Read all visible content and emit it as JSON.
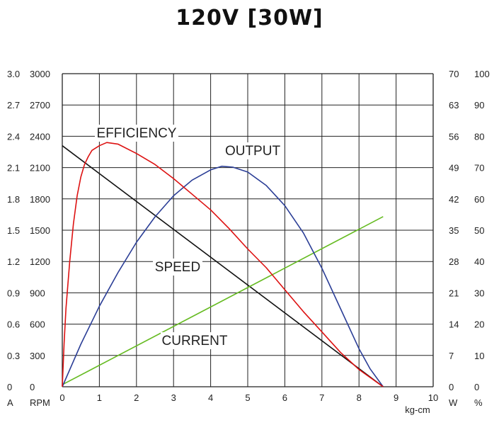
{
  "title": "120V [30W]",
  "chart_data": {
    "type": "line",
    "title": "120V [30W]",
    "x": {
      "unit": "kg-cm",
      "range": [
        0,
        10
      ],
      "ticks": [
        "0",
        "1",
        "2",
        "3",
        "4",
        "5",
        "6",
        "7",
        "8",
        "9",
        "10"
      ]
    },
    "axes": {
      "current": {
        "unit": "A",
        "range": [
          0,
          3.0
        ],
        "ticks": [
          "0",
          "0.3",
          "0.6",
          "0.9",
          "1.2",
          "1.5",
          "1.8",
          "2.1",
          "2.4",
          "2.7",
          "3.0"
        ]
      },
      "speed": {
        "unit": "RPM",
        "range": [
          0,
          3000
        ],
        "ticks": [
          "0",
          "300",
          "600",
          "900",
          "1200",
          "1500",
          "1800",
          "2100",
          "2400",
          "2700",
          "3000"
        ]
      },
      "output": {
        "unit": "W",
        "range": [
          0,
          70
        ],
        "ticks": [
          "0",
          "7",
          "14",
          "21",
          "28",
          "35",
          "42",
          "49",
          "56",
          "63",
          "70"
        ]
      },
      "efficiency": {
        "unit": "%",
        "range": [
          0,
          100
        ],
        "ticks": [
          "0",
          "10",
          "20",
          "30",
          "40",
          "50",
          "60",
          "70",
          "80",
          "90",
          "100"
        ]
      }
    },
    "series": [
      {
        "name": "SPEED",
        "axis": "speed",
        "color": "#111111",
        "points": [
          [
            0,
            2310
          ],
          [
            8.65,
            0
          ]
        ]
      },
      {
        "name": "CURRENT",
        "axis": "current",
        "color": "#66bb22",
        "points": [
          [
            0,
            0.02
          ],
          [
            8.65,
            1.63
          ]
        ]
      },
      {
        "name": "OUTPUT",
        "axis": "output",
        "color": "#2b3e96",
        "points": [
          [
            0,
            0
          ],
          [
            0.5,
            9.5
          ],
          [
            1,
            18
          ],
          [
            1.5,
            25.5
          ],
          [
            2,
            32.3
          ],
          [
            2.5,
            38
          ],
          [
            3,
            42.7
          ],
          [
            3.5,
            46.2
          ],
          [
            4,
            48.5
          ],
          [
            4.3,
            49.3
          ],
          [
            4.6,
            49.1
          ],
          [
            5,
            48
          ],
          [
            5.5,
            45
          ],
          [
            6,
            40.5
          ],
          [
            6.5,
            34.4
          ],
          [
            7,
            26.5
          ],
          [
            7.5,
            17.5
          ],
          [
            8,
            8.5
          ],
          [
            8.3,
            4
          ],
          [
            8.65,
            0
          ]
        ]
      },
      {
        "name": "EFFICIENCY",
        "axis": "efficiency",
        "color": "#dd1111",
        "points": [
          [
            0,
            0
          ],
          [
            0.05,
            14
          ],
          [
            0.1,
            25
          ],
          [
            0.2,
            40
          ],
          [
            0.3,
            52
          ],
          [
            0.4,
            61
          ],
          [
            0.5,
            67
          ],
          [
            0.6,
            71
          ],
          [
            0.7,
            73.5
          ],
          [
            0.8,
            75.5
          ],
          [
            1,
            77
          ],
          [
            1.2,
            78
          ],
          [
            1.5,
            77.5
          ],
          [
            2,
            74.5
          ],
          [
            2.5,
            71
          ],
          [
            3,
            66.5
          ],
          [
            3.5,
            61.5
          ],
          [
            4,
            56.5
          ],
          [
            4.5,
            50.5
          ],
          [
            5,
            44
          ],
          [
            5.5,
            38
          ],
          [
            6,
            31
          ],
          [
            6.5,
            24
          ],
          [
            7,
            17.5
          ],
          [
            7.5,
            11
          ],
          [
            8,
            5.5
          ],
          [
            8.65,
            0
          ]
        ]
      }
    ],
    "annotations": [
      "EFFICIENCY",
      "OUTPUT",
      "SPEED",
      "CURRENT"
    ],
    "grid": true
  }
}
